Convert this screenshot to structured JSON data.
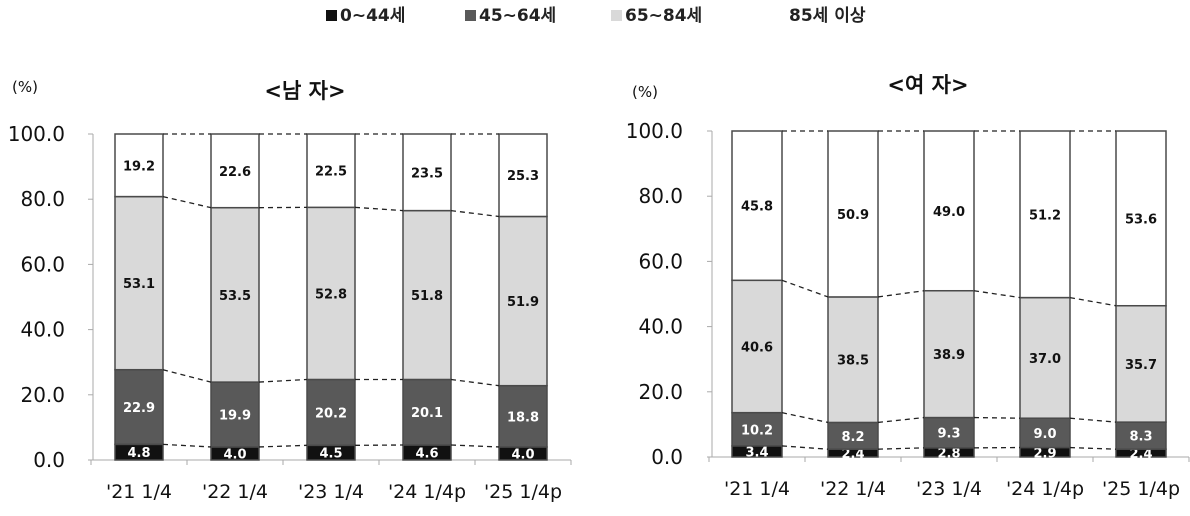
{
  "legend": [
    {
      "label": "0~44세",
      "color": "#111111"
    },
    {
      "label": "45~64세",
      "color": "#595959"
    },
    {
      "label": "65~84세",
      "color": "#d9d9d9"
    },
    {
      "label": "85세 이상",
      "color": "#ffffff"
    }
  ],
  "chart_data": [
    {
      "type": "bar",
      "stacked": true,
      "title": "<남 자>",
      "unit": "(%)",
      "categories": [
        "'21 1/4",
        "'22 1/4",
        "'23 1/4",
        "'24 1/4p",
        "'25 1/4p"
      ],
      "ylim": [
        0,
        100
      ],
      "yticks": [
        "0.0",
        "20.0",
        "40.0",
        "60.0",
        "80.0",
        "100.0"
      ],
      "series": [
        {
          "name": "0~44세",
          "values": [
            4.8,
            4.0,
            4.5,
            4.6,
            4.0
          ],
          "labels": [
            "4.8",
            "4.0",
            "4.5",
            "4.6",
            "4.0"
          ]
        },
        {
          "name": "45~64세",
          "values": [
            22.9,
            19.9,
            20.2,
            20.1,
            18.8
          ],
          "labels": [
            "22.9",
            "19.9",
            "20.2",
            "20.1",
            "18.8"
          ]
        },
        {
          "name": "65~84세",
          "values": [
            53.1,
            53.5,
            52.8,
            51.8,
            51.9
          ],
          "labels": [
            "53.1",
            "53.5",
            "52.8",
            "51.8",
            "51.9"
          ]
        },
        {
          "name": "85세 이상",
          "values": [
            19.2,
            22.6,
            22.5,
            23.5,
            25.3
          ],
          "labels": [
            "19.2",
            "22.6",
            "22.5",
            "23.5",
            "25.3"
          ]
        }
      ]
    },
    {
      "type": "bar",
      "stacked": true,
      "title": "<여 자>",
      "unit": "(%)",
      "categories": [
        "'21 1/4",
        "'22 1/4",
        "'23 1/4",
        "'24 1/4p",
        "'25 1/4p"
      ],
      "ylim": [
        0,
        100
      ],
      "yticks": [
        "0.0",
        "20.0",
        "40.0",
        "60.0",
        "80.0",
        "100.0"
      ],
      "series": [
        {
          "name": "0~44세",
          "values": [
            3.4,
            2.4,
            2.8,
            2.9,
            2.4
          ],
          "labels": [
            "3.4",
            "2.4",
            "2.8",
            "2.9",
            "2.4"
          ]
        },
        {
          "name": "45~64세",
          "values": [
            10.2,
            8.2,
            9.3,
            9.0,
            8.3
          ],
          "labels": [
            "10.2",
            "8.2",
            "9.3",
            "9.0",
            "8.3"
          ]
        },
        {
          "name": "65~84세",
          "values": [
            40.6,
            38.5,
            38.9,
            37.0,
            35.7
          ],
          "labels": [
            "40.6",
            "38.5",
            "38.9",
            "37.0",
            "35.7"
          ]
        },
        {
          "name": "85세 이상",
          "values": [
            45.8,
            50.9,
            49.0,
            51.2,
            53.6
          ],
          "labels": [
            "45.8",
            "50.9",
            "49.0",
            "51.2",
            "53.6"
          ]
        }
      ]
    }
  ]
}
